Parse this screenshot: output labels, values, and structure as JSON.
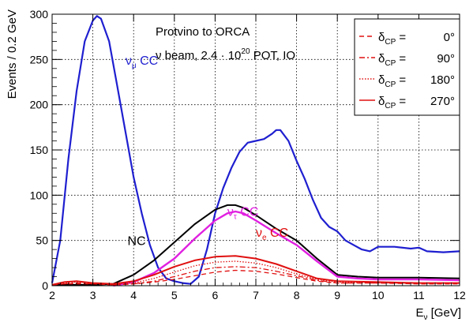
{
  "chart_data": {
    "type": "line",
    "title_lines": [
      "Protvino to ORCA",
      "ν beam, 2.4 · 10",
      "20",
      " POT, IO"
    ],
    "ylabel": "Events / 0.2 GeV",
    "xlabel_main": "E",
    "xlabel_sub": "ν",
    "xlabel_unit": " [GeV]",
    "xlim": [
      2,
      12
    ],
    "ylim": [
      0,
      300
    ],
    "xticks": [
      2,
      3,
      4,
      5,
      6,
      7,
      8,
      9,
      10,
      11,
      12
    ],
    "yticks": [
      0,
      50,
      100,
      150,
      200,
      250,
      300
    ],
    "grid": true,
    "legend": {
      "placement": "top-right",
      "symbol": "δ",
      "subscript": "CP",
      "entries": [
        {
          "label": "0°",
          "style": "dashed"
        },
        {
          "label": "90°",
          "style": "dashdot"
        },
        {
          "label": "180°",
          "style": "dotted"
        },
        {
          "label": "270°",
          "style": "solid"
        }
      ]
    },
    "annotations": [
      {
        "main": "ν",
        "sub": "μ",
        "rest": " CC",
        "color": "#1f1fd0",
        "x": 3.8,
        "y": 244
      },
      {
        "main": "ν",
        "sub": "τ",
        "rest": " CC",
        "color": "#e020e0",
        "x": 6.3,
        "y": 77
      },
      {
        "main": "ν",
        "sub": "e",
        "rest": " CC",
        "color": "#e01010",
        "x": 7.0,
        "y": 54
      },
      {
        "main": "NC",
        "sub": "",
        "rest": "",
        "color": "#000000",
        "x": 3.85,
        "y": 45
      }
    ],
    "series": [
      {
        "name": "ν_μ CC",
        "color": "#1f1fd0",
        "width": 2.2,
        "dash": "",
        "x": [
          2.0,
          2.2,
          2.4,
          2.6,
          2.8,
          3.0,
          3.1,
          3.2,
          3.4,
          3.6,
          3.8,
          4.0,
          4.2,
          4.4,
          4.6,
          4.8,
          5.0,
          5.2,
          5.4,
          5.6,
          5.8,
          6.0,
          6.2,
          6.4,
          6.6,
          6.8,
          7.0,
          7.2,
          7.4,
          7.5,
          7.6,
          7.8,
          8.0,
          8.2,
          8.4,
          8.6,
          8.8,
          9.0,
          9.2,
          9.4,
          9.6,
          9.8,
          10.0,
          10.4,
          10.8,
          11.0,
          11.2,
          11.6,
          12.0
        ],
        "y": [
          3,
          50,
          140,
          215,
          270,
          293,
          298,
          295,
          270,
          220,
          170,
          120,
          80,
          45,
          20,
          8,
          5,
          3,
          2,
          10,
          40,
          80,
          108,
          130,
          148,
          158,
          160,
          162,
          168,
          172,
          172,
          160,
          138,
          118,
          95,
          75,
          65,
          60,
          50,
          45,
          40,
          38,
          43,
          43,
          41,
          42,
          38,
          37,
          38
        ]
      },
      {
        "name": "NC",
        "color": "#000000",
        "width": 2.0,
        "dash": "",
        "x": [
          2.0,
          2.2,
          2.5,
          3.0,
          3.5,
          4.0,
          4.5,
          5.0,
          5.5,
          6.0,
          6.3,
          6.5,
          6.7,
          7.0,
          7.5,
          8.0,
          8.5,
          9.0,
          9.5,
          10.0,
          11.0,
          12.0
        ],
        "y": [
          1,
          1,
          1,
          1,
          2,
          12,
          28,
          48,
          68,
          84,
          89,
          89,
          86,
          78,
          63,
          50,
          30,
          12,
          10,
          9,
          9,
          8
        ]
      },
      {
        "name": "ν_τ CC",
        "color": "#e020e0",
        "width": 2.4,
        "dash": "",
        "x": [
          3.5,
          4.0,
          4.5,
          5.0,
          5.5,
          6.0,
          6.3,
          6.5,
          6.7,
          7.0,
          7.5,
          8.0,
          8.5,
          9.0,
          9.5,
          10.0,
          11.0,
          12.0
        ],
        "y": [
          0,
          4,
          14,
          30,
          52,
          72,
          80,
          82,
          80,
          72,
          58,
          45,
          27,
          10,
          8,
          7,
          7,
          6
        ]
      },
      {
        "name": "ν_e CC δ=270°",
        "color": "#e01010",
        "width": 2.0,
        "dash": "",
        "x": [
          2.0,
          2.3,
          2.6,
          3.0,
          3.5,
          4.0,
          4.5,
          5.0,
          5.5,
          6.0,
          6.5,
          7.0,
          7.5,
          8.0,
          8.5,
          9.0,
          10.0,
          11.0,
          12.0
        ],
        "y": [
          1,
          4,
          5,
          3,
          2,
          5,
          12,
          21,
          28,
          32,
          33,
          30,
          24,
          16,
          8,
          5,
          4,
          3,
          3
        ]
      },
      {
        "name": "ν_e CC δ=180°",
        "color": "#e01010",
        "width": 1.3,
        "dash": "1.5,2",
        "x": [
          2.0,
          2.3,
          2.6,
          3.0,
          3.5,
          4.0,
          4.5,
          5.0,
          5.5,
          6.0,
          6.5,
          7.0,
          7.5,
          8.0,
          8.5,
          9.0,
          10.0,
          11.0,
          12.0
        ],
        "y": [
          1,
          3,
          4,
          3,
          2,
          3,
          8,
          15,
          22,
          26,
          27,
          25,
          20,
          13,
          7,
          4,
          3,
          3,
          3
        ]
      },
      {
        "name": "ν_e CC δ=90°",
        "color": "#e01010",
        "width": 1.3,
        "dash": "7,3,2,3",
        "x": [
          2.0,
          2.3,
          2.6,
          3.0,
          3.5,
          4.0,
          4.5,
          5.0,
          5.5,
          6.0,
          6.5,
          7.0,
          7.5,
          8.0,
          8.5,
          9.0,
          10.0,
          11.0,
          12.0
        ],
        "y": [
          1,
          2,
          3,
          2,
          1,
          2,
          5,
          10,
          16,
          20,
          21,
          20,
          16,
          11,
          6,
          3,
          3,
          3,
          3
        ]
      },
      {
        "name": "ν_e CC δ=0°",
        "color": "#e01010",
        "width": 1.3,
        "dash": "6,4",
        "x": [
          2.0,
          2.3,
          2.6,
          3.0,
          3.5,
          4.0,
          4.5,
          5.0,
          5.5,
          6.0,
          6.5,
          7.0,
          7.5,
          8.0,
          8.5,
          9.0,
          10.0,
          11.0,
          12.0
        ],
        "y": [
          1,
          2,
          2,
          2,
          1,
          2,
          4,
          7,
          11,
          15,
          17,
          16,
          13,
          9,
          5,
          3,
          3,
          2,
          2
        ]
      }
    ]
  }
}
